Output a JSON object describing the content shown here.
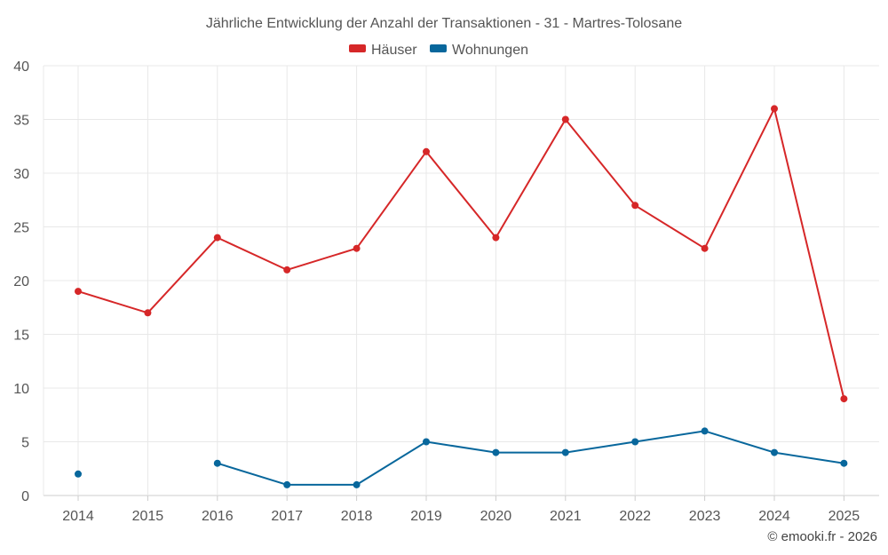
{
  "chart_data": {
    "type": "line",
    "title": "Jährliche Entwicklung der Anzahl der Transaktionen - 31 - Martres-Tolosane",
    "categories": [
      "2014",
      "2015",
      "2016",
      "2017",
      "2018",
      "2019",
      "2020",
      "2021",
      "2022",
      "2023",
      "2024",
      "2025"
    ],
    "series": [
      {
        "name": "Häuser",
        "color": "#d62728",
        "values": [
          19,
          17,
          24,
          21,
          23,
          32,
          24,
          35,
          27,
          23,
          36,
          9
        ]
      },
      {
        "name": "Wohnungen",
        "color": "#08679c",
        "values": [
          2,
          null,
          3,
          1,
          1,
          5,
          4,
          4,
          5,
          6,
          4,
          3
        ]
      }
    ],
    "ylim": [
      0,
      40
    ],
    "yticks": [
      0,
      5,
      10,
      15,
      20,
      25,
      30,
      35,
      40
    ],
    "xlabel": "",
    "ylabel": "",
    "grid": true,
    "legend": "top-center"
  },
  "credit": "© emooki.fr - 2026"
}
